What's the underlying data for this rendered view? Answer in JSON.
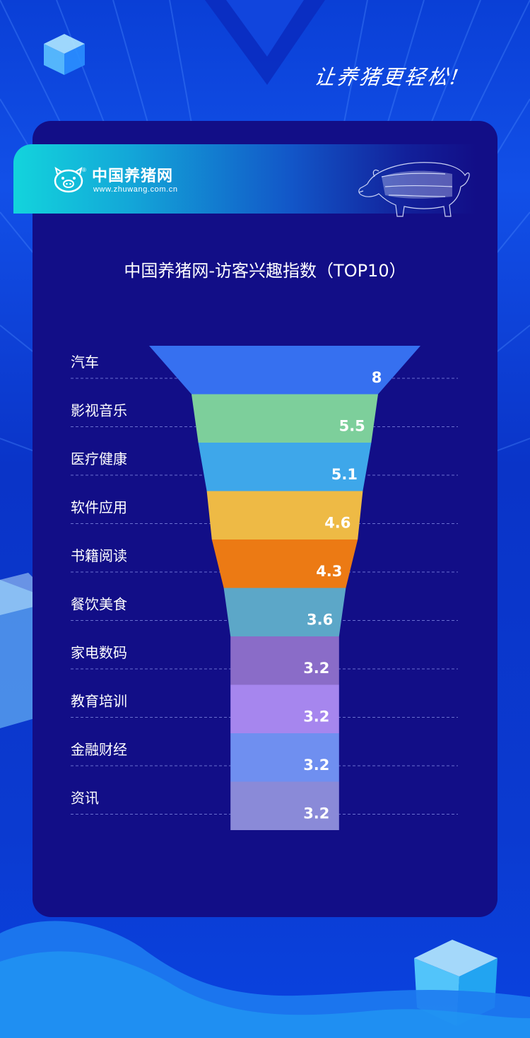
{
  "slogan": "让养猪更轻松!",
  "brand": {
    "name": "中国养猪网",
    "url": "www.zhuwang.com.cn",
    "registered_mark": "®"
  },
  "colors": {
    "panel": "#120e87",
    "banner_start": "#13d4dc"
  },
  "chart_data": {
    "type": "funnel",
    "title": "中国养猪网-访客兴趣指数（TOP10）",
    "categories": [
      "汽车",
      "影视音乐",
      "医疗健康",
      "软件应用",
      "书籍阅读",
      "餐饮美食",
      "家电数码",
      "教育培训",
      "金融财经",
      "资讯"
    ],
    "values": [
      8,
      5.5,
      5.1,
      4.6,
      4.3,
      3.6,
      3.2,
      3.2,
      3.2,
      3.2
    ],
    "colors": [
      "#3670f0",
      "#7dcf9b",
      "#3ea7ea",
      "#eeba45",
      "#ec7a14",
      "#5ca7c8",
      "#8a6cc8",
      "#a686ee",
      "#6f8ff0",
      "#8a8ad8"
    ],
    "grid": "dashed"
  }
}
